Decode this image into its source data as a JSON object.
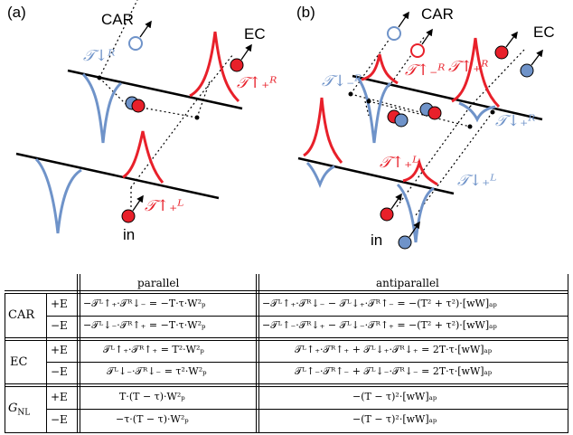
{
  "figure": {
    "panel_a": "(a)",
    "panel_b": "(b)",
    "car": "CAR",
    "ec": "EC",
    "in": "in",
    "a_T_R_down": "𝒯↓ᴿ",
    "a_T_R_up_plus": "𝒯↑₊ᴿ",
    "a_T_L_up_plus": "𝒯↑₊ᴸ",
    "b_T_R_down_minus": "𝒯↓₋ᴿ",
    "b_T_R_up_minus": "𝒯↑₋ᴿ",
    "b_T_R_up_plus": "𝒯↑₊ᴿ",
    "b_T_R_down_plus": "𝒯↓₊ᴿ",
    "b_T_L_up_plus": "𝒯↑₊ᴸ",
    "b_T_L_down_plus": "𝒯↓₊ᴸ",
    "colors": {
      "blue": "#6f93c9",
      "red": "#e8202a"
    }
  },
  "table": {
    "col_parallel": "parallel",
    "col_antiparallel": "antiparallel",
    "groups": [
      {
        "name": "CAR",
        "rows": [
          {
            "sign": "+E",
            "parallel": "−𝒯ᴸ↑₊·𝒯ᴿ↓₋ = −T·τ·W²ₚ",
            "antiparallel": "−𝒯ᴸ↑₊·𝒯ᴿ↓₋ − 𝒯ᴸ↓₊·𝒯ᴿ↑₋ = −(T² + τ²)·[wW]ₐₚ"
          },
          {
            "sign": "−E",
            "parallel": "−𝒯ᴸ↓₋·𝒯ᴿ↑₊ = −T·τ·W²ₚ",
            "antiparallel": "−𝒯ᴸ↑₋·𝒯ᴿ↓₊ − 𝒯ᴸ↓₋·𝒯ᴿ↑₊ = −(T² + τ²)·[wW]ₐₚ"
          }
        ]
      },
      {
        "name": "EC",
        "rows": [
          {
            "sign": "+E",
            "parallel": "𝒯ᴸ↑₊·𝒯ᴿ↑₊ = T²·W²ₚ",
            "antiparallel": "𝒯ᴸ↑₊·𝒯ᴿ↑₊ + 𝒯ᴸ↓₊·𝒯ᴿ↓₊ = 2T·τ·[wW]ₐₚ"
          },
          {
            "sign": "−E",
            "parallel": "𝒯ᴸ↓₋·𝒯ᴿ↓₋ = τ²·W²ₚ",
            "antiparallel": "𝒯ᴸ↑₋·𝒯ᴿ↑₋ + 𝒯ᴸ↓₋·𝒯ᴿ↓₋ = 2T·τ·[wW]ₐₚ"
          }
        ]
      },
      {
        "name": "G_NL",
        "rows": [
          {
            "sign": "+E",
            "parallel": "T·(T − τ)·W²ₚ",
            "antiparallel": "−(T − τ)²·[wW]ₐₚ"
          },
          {
            "sign": "−E",
            "parallel": "−τ·(T − τ)·W²ₚ",
            "antiparallel": "−(T − τ)²·[wW]ₐₚ"
          }
        ]
      }
    ]
  }
}
